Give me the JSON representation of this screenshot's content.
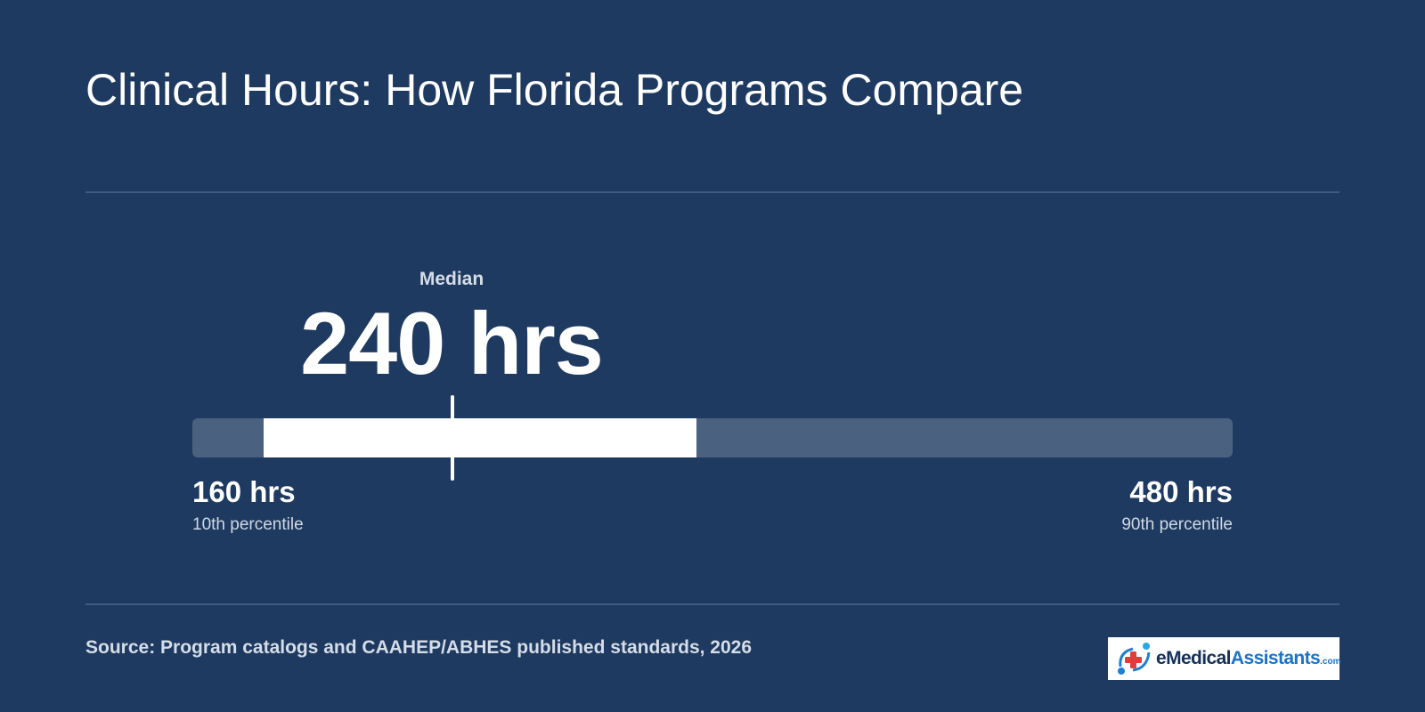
{
  "title": "Clinical Hours: How Florida Programs Compare",
  "chart_data": {
    "type": "range",
    "unit": "hrs",
    "axis_min": 160,
    "axis_max": 480,
    "p10": 160,
    "p90": 480,
    "median": 240,
    "highlight_range": [
      182,
      315
    ],
    "median_label": "Median",
    "median_display": "240 hrs",
    "min_display": "160 hrs",
    "min_caption": "10th percentile",
    "max_display": "480 hrs",
    "max_caption": "90th percentile",
    "colors": {
      "background": "#1f3a60",
      "track": "#4a6180",
      "highlight": "#ffffff"
    }
  },
  "source": "Source: Program catalogs and CAAHEP/ABHES published standards, 2026",
  "logo": {
    "text_prefix": "eMedical",
    "text_brand": "Assistants",
    "text_suffix": ".com",
    "icon": "medical-cross-logo-icon"
  }
}
